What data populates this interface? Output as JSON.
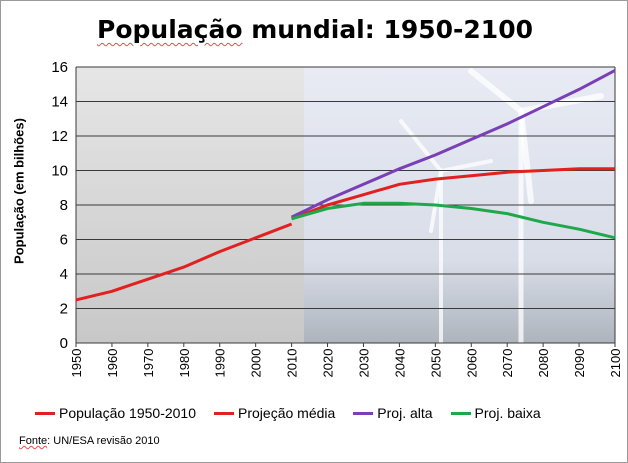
{
  "chart_data": {
    "type": "line",
    "title_word": "População",
    "title_rest": " mundial: 1950-2100",
    "ylabel": "População (em bilhões)",
    "xlabel": "",
    "x_ticks": [
      "1950",
      "1960",
      "1970",
      "1980",
      "1990",
      "2000",
      "2010",
      "2020",
      "2030",
      "2040",
      "2050",
      "2060",
      "2070",
      "2080",
      "2090",
      "2100"
    ],
    "y_ticks": [
      "0",
      "2",
      "4",
      "6",
      "8",
      "10",
      "12",
      "14",
      "16"
    ],
    "xlim": [
      1950,
      2100
    ],
    "ylim": [
      0,
      16
    ],
    "grid": true,
    "legend_position": "bottom",
    "series": [
      {
        "name": "População 1950-2010",
        "color": "#e32020",
        "x": [
          1950,
          1960,
          1970,
          1980,
          1990,
          2000,
          2010
        ],
        "y": [
          2.5,
          3.0,
          3.7,
          4.4,
          5.3,
          6.1,
          6.9
        ]
      },
      {
        "name": "Projeção média",
        "color": "#e32020",
        "x": [
          2010,
          2020,
          2030,
          2040,
          2050,
          2060,
          2070,
          2080,
          2090,
          2100
        ],
        "y": [
          7.2,
          8.0,
          8.6,
          9.2,
          9.5,
          9.7,
          9.9,
          10.0,
          10.1,
          10.1
        ]
      },
      {
        "name": "Proj. alta",
        "color": "#7a3fb5",
        "x": [
          2010,
          2020,
          2030,
          2040,
          2050,
          2060,
          2070,
          2080,
          2090,
          2100
        ],
        "y": [
          7.3,
          8.3,
          9.2,
          10.1,
          10.9,
          11.8,
          12.7,
          13.7,
          14.7,
          15.8
        ]
      },
      {
        "name": "Proj. baixa",
        "color": "#1fa84a",
        "x": [
          2010,
          2020,
          2030,
          2040,
          2050,
          2060,
          2070,
          2080,
          2090,
          2100
        ],
        "y": [
          7.2,
          7.8,
          8.1,
          8.1,
          8.0,
          7.8,
          7.5,
          7.0,
          6.6,
          6.1
        ]
      }
    ]
  },
  "source": {
    "label": "Fonte",
    "rest": ": UN/ESA revisão 2010"
  }
}
